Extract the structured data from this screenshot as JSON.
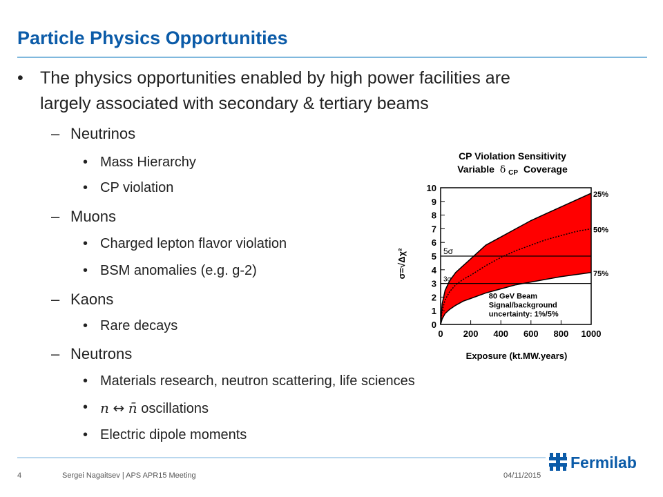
{
  "slide": {
    "title": "Particle Physics Opportunities",
    "intro_line1": "The physics opportunities enabled by high power facilities are",
    "intro_line2": "largely associated with secondary & tertiary beams",
    "sections": [
      {
        "label": "Neutrinos",
        "items": [
          "Mass Hierarchy",
          "CP violation"
        ]
      },
      {
        "label": "Muons",
        "items": [
          "Charged lepton flavor violation",
          "BSM anomalies (e.g. g-2)"
        ]
      },
      {
        "label": "Kaons",
        "items": [
          "Rare decays"
        ]
      },
      {
        "label": "Neutrons",
        "items": [
          "Materials research, neutron scattering, life sciences",
          "oscillations",
          "Electric dipole moments"
        ]
      }
    ],
    "math_n": "n",
    "math_arrow": "↔",
    "math_nbar": "n̄"
  },
  "footer": {
    "page": "4",
    "author": "Sergei Nagaitsev | APS APR15 Meeting",
    "date": "04/11/2015",
    "logo_text": "Fermilab"
  },
  "colors": {
    "title": "#0b5ba8",
    "band": "#ff0000",
    "rule": "#7fb8dd"
  },
  "chart_data": {
    "type": "area",
    "title_line1": "CP Violation Sensitivity",
    "title_line2_prefix": "Variable",
    "title_line2_symbol": "δ",
    "title_line2_sub": "CP",
    "title_line2_suffix": "Coverage",
    "xlabel": "Exposure (kt.MW.years)",
    "ylabel": "σ=√Δχ²",
    "xlim": [
      0,
      1000
    ],
    "ylim": [
      0,
      10
    ],
    "xticks": [
      0,
      200,
      400,
      600,
      800,
      1000
    ],
    "yticks": [
      0,
      1,
      2,
      3,
      4,
      5,
      6,
      7,
      8,
      9,
      10
    ],
    "series": [
      {
        "name": "25%",
        "x": [
          0,
          10,
          30,
          60,
          100,
          150,
          200,
          300,
          400,
          500,
          600,
          700,
          800,
          900,
          1000
        ],
        "y": [
          0,
          1.5,
          2.5,
          3.2,
          3.8,
          4.3,
          4.8,
          5.8,
          6.4,
          7.0,
          7.6,
          8.1,
          8.6,
          9.1,
          9.6
        ]
      },
      {
        "name": "50%",
        "x": [
          0,
          10,
          30,
          60,
          100,
          150,
          200,
          300,
          400,
          500,
          600,
          700,
          800,
          900,
          1000
        ],
        "y": [
          0,
          1.0,
          1.8,
          2.4,
          2.9,
          3.3,
          3.6,
          4.3,
          4.9,
          5.4,
          5.8,
          6.2,
          6.5,
          6.8,
          7.0
        ]
      },
      {
        "name": "75%",
        "x": [
          0,
          10,
          30,
          60,
          100,
          150,
          200,
          300,
          400,
          500,
          600,
          700,
          800,
          900,
          1000
        ],
        "y": [
          0,
          0.4,
          0.8,
          1.1,
          1.4,
          1.7,
          1.9,
          2.3,
          2.6,
          2.9,
          3.1,
          3.3,
          3.5,
          3.65,
          3.8
        ]
      }
    ],
    "hlines": [
      {
        "label": "5σ",
        "y": 5
      },
      {
        "label": "3σ",
        "y": 3
      }
    ],
    "annotation": [
      "80 GeV Beam",
      "Signal/background",
      "uncertainty: 1%/5%"
    ]
  }
}
